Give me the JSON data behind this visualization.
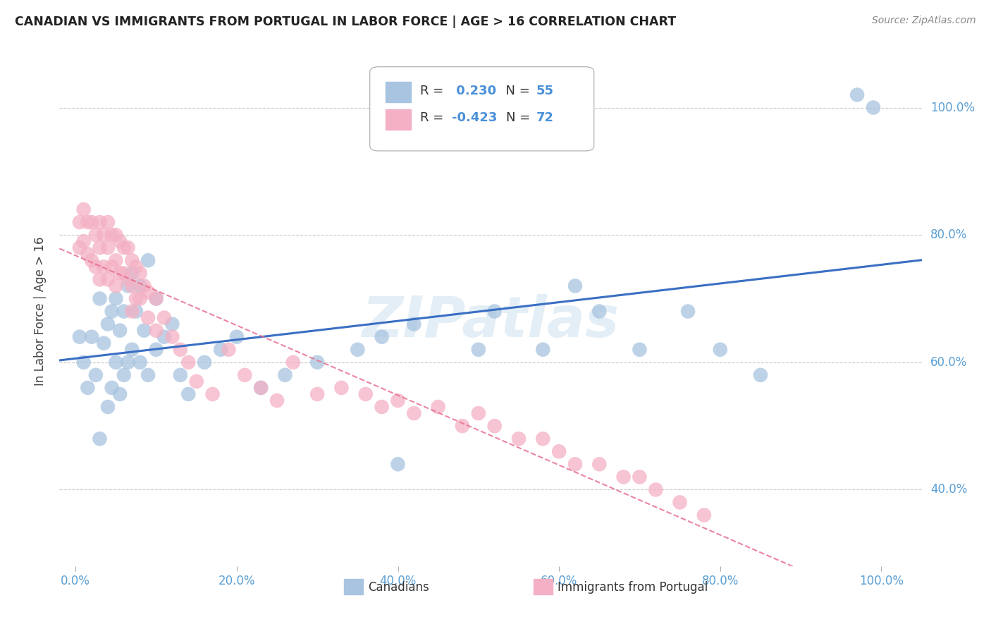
{
  "title": "CANADIAN VS IMMIGRANTS FROM PORTUGAL IN LABOR FORCE | AGE > 16 CORRELATION CHART",
  "source": "Source: ZipAtlas.com",
  "ylabel": "In Labor Force | Age > 16",
  "background_color": "#ffffff",
  "grid_color": "#c8c8c8",
  "canadians_color": "#a8c4e0",
  "portugal_color": "#f4b0c4",
  "trendline_canadian_color": "#3a6fc4",
  "trendline_portugal_color": "#e87090",
  "watermark": "ZIPatlas",
  "xlim": [
    -0.02,
    1.05
  ],
  "ylim": [
    0.28,
    1.08
  ],
  "xtick_labels": [
    "0.0%",
    "20.0%",
    "40.0%",
    "60.0%",
    "80.0%",
    "100.0%"
  ],
  "xtick_values": [
    0.0,
    0.2,
    0.4,
    0.6,
    0.8,
    1.0
  ],
  "ytick_labels": [
    "100.0%",
    "80.0%",
    "60.0%",
    "40.0%"
  ],
  "ytick_values": [
    1.0,
    0.8,
    0.6,
    0.4
  ],
  "canadians_x": [
    0.005,
    0.01,
    0.015,
    0.02,
    0.025,
    0.03,
    0.03,
    0.035,
    0.04,
    0.04,
    0.045,
    0.045,
    0.05,
    0.05,
    0.055,
    0.055,
    0.06,
    0.06,
    0.065,
    0.065,
    0.07,
    0.07,
    0.075,
    0.08,
    0.08,
    0.085,
    0.09,
    0.09,
    0.1,
    0.1,
    0.11,
    0.12,
    0.13,
    0.14,
    0.16,
    0.18,
    0.2,
    0.23,
    0.26,
    0.3,
    0.35,
    0.38,
    0.4,
    0.42,
    0.5,
    0.52,
    0.58,
    0.62,
    0.65,
    0.7,
    0.76,
    0.8,
    0.85,
    0.97,
    0.99
  ],
  "canadians_y": [
    0.64,
    0.6,
    0.56,
    0.64,
    0.58,
    0.7,
    0.48,
    0.63,
    0.66,
    0.53,
    0.68,
    0.56,
    0.7,
    0.6,
    0.65,
    0.55,
    0.68,
    0.58,
    0.72,
    0.6,
    0.74,
    0.62,
    0.68,
    0.72,
    0.6,
    0.65,
    0.76,
    0.58,
    0.7,
    0.62,
    0.64,
    0.66,
    0.58,
    0.55,
    0.6,
    0.62,
    0.64,
    0.56,
    0.58,
    0.6,
    0.62,
    0.64,
    0.44,
    0.66,
    0.62,
    0.68,
    0.62,
    0.72,
    0.68,
    0.62,
    0.68,
    0.62,
    0.58,
    1.02,
    1.0
  ],
  "portugal_x": [
    0.005,
    0.005,
    0.01,
    0.01,
    0.015,
    0.015,
    0.02,
    0.02,
    0.025,
    0.025,
    0.03,
    0.03,
    0.03,
    0.035,
    0.035,
    0.04,
    0.04,
    0.04,
    0.045,
    0.045,
    0.05,
    0.05,
    0.05,
    0.055,
    0.055,
    0.06,
    0.06,
    0.065,
    0.065,
    0.07,
    0.07,
    0.07,
    0.075,
    0.075,
    0.08,
    0.08,
    0.085,
    0.09,
    0.09,
    0.1,
    0.1,
    0.11,
    0.12,
    0.13,
    0.14,
    0.15,
    0.17,
    0.19,
    0.21,
    0.23,
    0.25,
    0.27,
    0.3,
    0.33,
    0.36,
    0.38,
    0.4,
    0.42,
    0.45,
    0.48,
    0.5,
    0.52,
    0.55,
    0.58,
    0.6,
    0.62,
    0.65,
    0.68,
    0.7,
    0.72,
    0.75,
    0.78
  ],
  "portugal_y": [
    0.82,
    0.78,
    0.84,
    0.79,
    0.82,
    0.77,
    0.82,
    0.76,
    0.8,
    0.75,
    0.82,
    0.78,
    0.73,
    0.8,
    0.75,
    0.82,
    0.78,
    0.73,
    0.8,
    0.75,
    0.8,
    0.76,
    0.72,
    0.79,
    0.74,
    0.78,
    0.74,
    0.78,
    0.73,
    0.76,
    0.72,
    0.68,
    0.75,
    0.7,
    0.74,
    0.7,
    0.72,
    0.71,
    0.67,
    0.7,
    0.65,
    0.67,
    0.64,
    0.62,
    0.6,
    0.57,
    0.55,
    0.62,
    0.58,
    0.56,
    0.54,
    0.6,
    0.55,
    0.56,
    0.55,
    0.53,
    0.54,
    0.52,
    0.53,
    0.5,
    0.52,
    0.5,
    0.48,
    0.48,
    0.46,
    0.44,
    0.44,
    0.42,
    0.42,
    0.4,
    0.38,
    0.36
  ]
}
